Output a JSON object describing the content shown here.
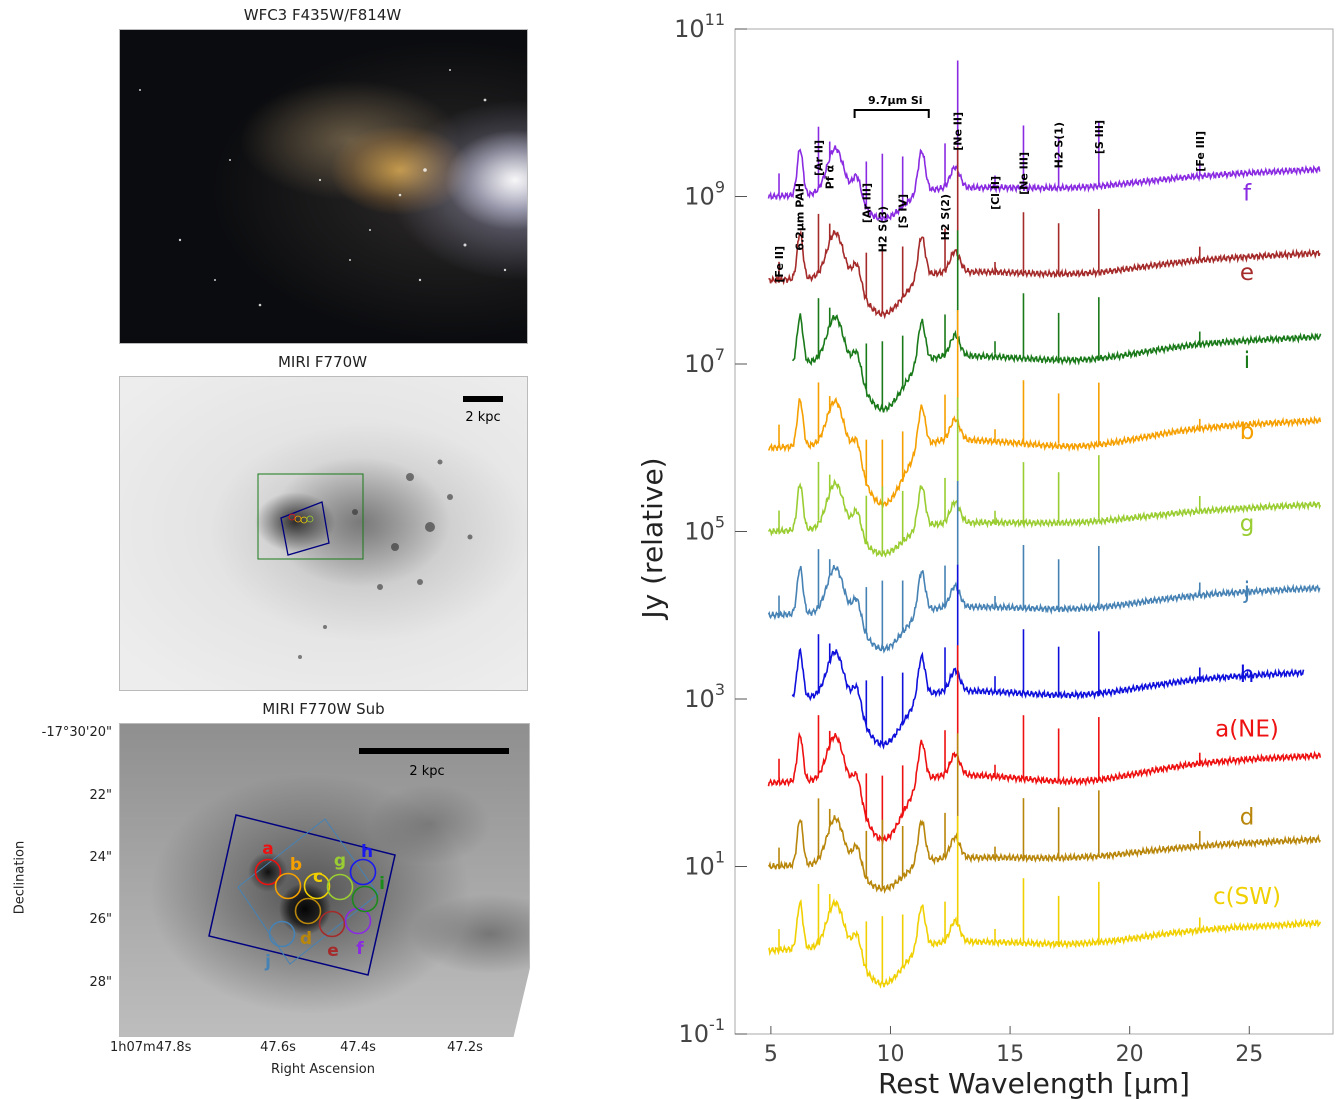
{
  "panels": {
    "hst": {
      "title": "WFC3 F435W/F814W"
    },
    "miri": {
      "title": "MIRI F770W",
      "scalebar": "2 kpc"
    },
    "sub": {
      "title": "MIRI F770W Sub",
      "scalebar": "2 kpc",
      "dec_ticks": [
        "-17°30'20\"",
        "22\"",
        "24\"",
        "26\"",
        "28\""
      ],
      "ra_ticks": [
        "1h07m47.8s",
        "47.6s",
        "47.4s",
        "47.2s"
      ],
      "ylabel": "Declination",
      "xlabel": "Right Ascension",
      "regions": [
        {
          "label": "a",
          "color": "#ee1111"
        },
        {
          "label": "b",
          "color": "#f5a000"
        },
        {
          "label": "c",
          "color": "#f0d000"
        },
        {
          "label": "d",
          "color": "#b8860b"
        },
        {
          "label": "e",
          "color": "#a52a2a"
        },
        {
          "label": "f",
          "color": "#8a2be2"
        },
        {
          "label": "g",
          "color": "#9acd32"
        },
        {
          "label": "h",
          "color": "#1a1aee"
        },
        {
          "label": "i",
          "color": "#1a8a1a"
        },
        {
          "label": "j",
          "color": "#4682b4"
        }
      ]
    }
  },
  "chart_data": {
    "type": "line",
    "xlabel": "Rest Wavelength [μm]",
    "ylabel": "Jy (relative)",
    "xlim": [
      3.5,
      28.5
    ],
    "ylim_log10": [
      -1,
      11
    ],
    "yscale": "log",
    "x_ticks": [
      5,
      10,
      15,
      20,
      25
    ],
    "y_ticks": [
      "10^-1",
      "10^1",
      "10^3",
      "10^5",
      "10^7",
      "10^9",
      "10^11"
    ],
    "series": [
      {
        "name": "f",
        "color": "#8a2be2",
        "offset": 9.0,
        "start": 4.9,
        "end": 28.0
      },
      {
        "name": "e",
        "color": "#a52a2a",
        "offset": 8.0,
        "start": 4.9,
        "end": 28.0
      },
      {
        "name": "i",
        "color": "#1a7a1a",
        "offset": 7.0,
        "start": 5.9,
        "end": 28.0
      },
      {
        "name": "b",
        "color": "#f5a000",
        "offset": 6.0,
        "start": 4.9,
        "end": 28.0
      },
      {
        "name": "g",
        "color": "#9acd32",
        "offset": 5.0,
        "start": 4.9,
        "end": 28.0
      },
      {
        "name": "j",
        "color": "#4682b4",
        "offset": 4.0,
        "start": 4.9,
        "end": 28.0
      },
      {
        "name": "h",
        "color": "#1010dd",
        "offset": 3.0,
        "start": 5.9,
        "end": 27.3
      },
      {
        "name": "a(NE)",
        "color": "#ee1111",
        "offset": 2.0,
        "start": 4.9,
        "end": 28.0
      },
      {
        "name": "d",
        "color": "#b8860b",
        "offset": 1.0,
        "start": 4.9,
        "end": 28.0
      },
      {
        "name": "c(SW)",
        "color": "#f0d000",
        "offset": 0.0,
        "start": 4.9,
        "end": 28.0
      }
    ],
    "line_labels": [
      {
        "text": "[Fe II]",
        "x": 5.34
      },
      {
        "text": "6.2μm PAH",
        "x": 6.2
      },
      {
        "text": "Pf α",
        "x": 7.46
      },
      {
        "text": "[Ar II]",
        "x": 6.99
      },
      {
        "text": "[Ar III]",
        "x": 8.99
      },
      {
        "text": "H2 S(3)",
        "x": 9.66
      },
      {
        "text": "[S IV]",
        "x": 10.51
      },
      {
        "text": "9.7μm Si",
        "x": 9.7
      },
      {
        "text": "H2 S(2)",
        "x": 12.28
      },
      {
        "text": "[Ne II]",
        "x": 12.81
      },
      {
        "text": "[Cl II]",
        "x": 14.37
      },
      {
        "text": "[Ne III]",
        "x": 15.56
      },
      {
        "text": "H2 S(1)",
        "x": 17.03
      },
      {
        "text": "[S III]",
        "x": 18.71
      },
      {
        "text": "[Fe III]",
        "x": 22.93
      }
    ]
  }
}
